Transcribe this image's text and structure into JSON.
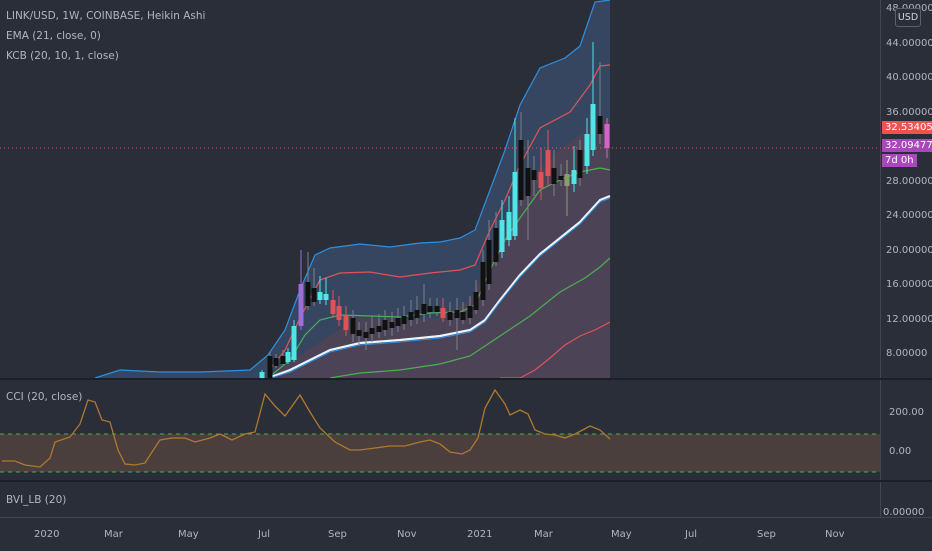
{
  "legend": {
    "symbol_line": "LINK/USD, 1W, COINBASE, Heikin Ashi",
    "ema_line": "EMA (21, close, 0)",
    "kcb_line": "KCB (20, 10, 1, close)",
    "cci_line": "CCI (20, close)",
    "bvi_line": "BVI_LB (20)"
  },
  "price_axis": {
    "currency_button": "USD",
    "ticks": [
      "48.00000",
      "44.00000",
      "40.00000",
      "36.00000",
      "28.00000",
      "24.00000",
      "20.00000",
      "16.00000",
      "12.00000",
      "8.00000"
    ],
    "last_price_label": "32.53405",
    "current_price_label": "32.09477",
    "countdown_label": "7d 0h"
  },
  "cci_axis": {
    "ticks": [
      "200.00",
      "0.00"
    ]
  },
  "bvi_axis": {
    "ticks": [
      "0.00000"
    ]
  },
  "time_axis": {
    "labels": [
      "2020",
      "Mar",
      "May",
      "Jul",
      "Sep",
      "Nov",
      "2021",
      "Mar",
      "May",
      "Jul",
      "Sep",
      "Nov"
    ]
  },
  "colors": {
    "background": "#2a2e39",
    "up_candle": "#4ee6e6",
    "down_candle": "#111111",
    "band_upper": "#2f8fe0",
    "band_mid": "#e0525a",
    "ema": "#9cc8ef",
    "cci": "#b0782e",
    "last_price_badge": "#ef5350",
    "current_price_badge": "#ab47bc"
  }
}
